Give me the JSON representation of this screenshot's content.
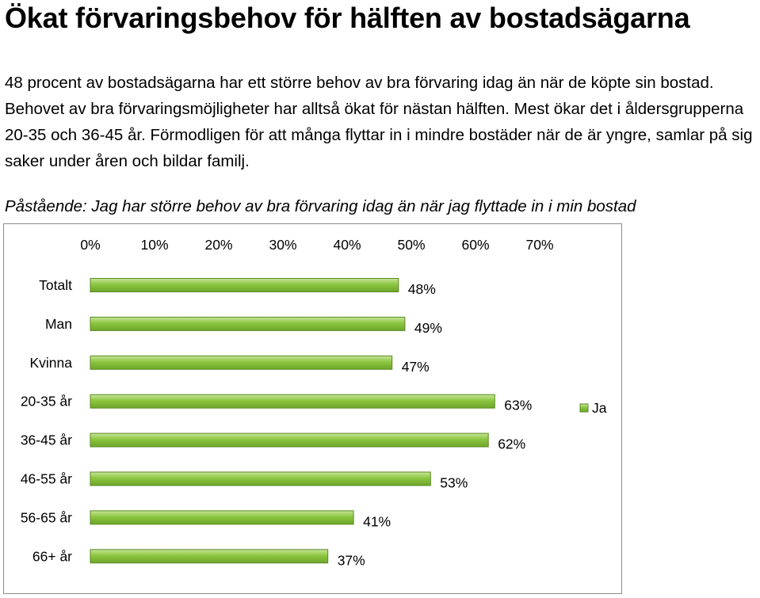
{
  "heading": "Ökat förvaringsbehov för hälften av bostadsägarna",
  "paragraph": "48 procent av bostadsägarna har ett större behov av bra förvaring idag än när de köpte sin bostad. Behovet av bra förvaringsmöjligheter har alltså ökat för nästan hälften. Mest ökar det i åldersgrupperna 20-35 och 36-45 år. Förmodligen för att många flyttar in i mindre bostäder när de är yngre, samlar på sig saker under åren och bildar familj.",
  "statement": "Påstående: Jag har större behov av bra förvaring idag än när jag flyttade in i min bostad",
  "chart_data": {
    "type": "bar",
    "orientation": "horizontal",
    "categories": [
      "Totalt",
      "Man",
      "Kvinna",
      "20-35 år",
      "36-45 år",
      "46-55 år",
      "56-65 år",
      "66+ år"
    ],
    "series": [
      {
        "name": "Ja",
        "values": [
          48,
          49,
          47,
          63,
          62,
          53,
          41,
          37
        ]
      }
    ],
    "data_labels": [
      "48%",
      "49%",
      "47%",
      "63%",
      "62%",
      "53%",
      "41%",
      "37%"
    ],
    "x_ticks": [
      "0%",
      "10%",
      "20%",
      "30%",
      "40%",
      "50%",
      "60%",
      "70%"
    ],
    "xlim": [
      0,
      70
    ],
    "x_axis_position": "top",
    "grid": false,
    "legend_position": "right",
    "bar_color": "#8cc63f",
    "bar_edge_color": "#5a8a22"
  }
}
